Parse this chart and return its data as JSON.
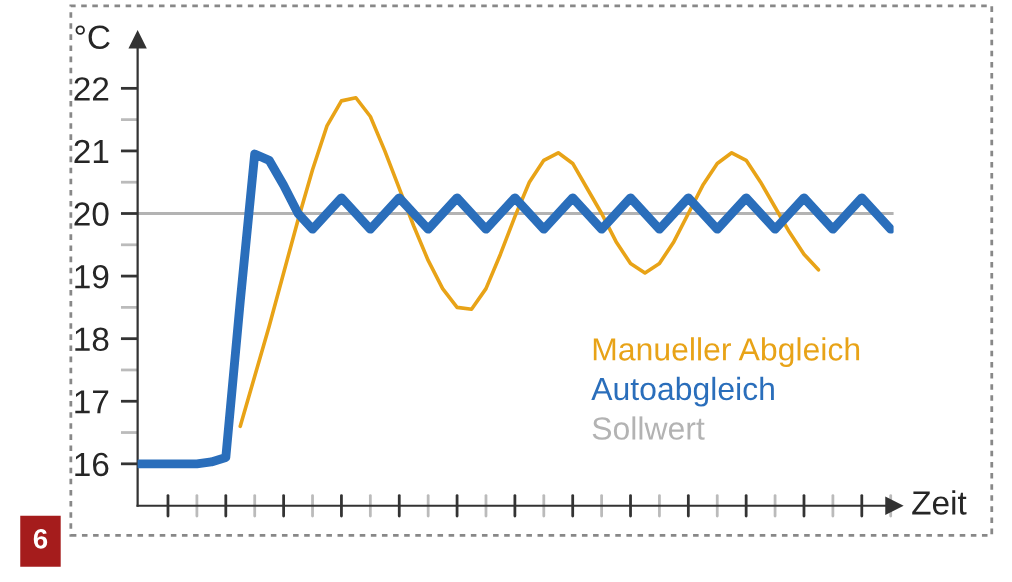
{
  "chart_data": {
    "type": "line",
    "xlabel": "Zeit",
    "ylabel": "°C",
    "categories": [
      null,
      null,
      null,
      null,
      null,
      null,
      null,
      null,
      null,
      null,
      null,
      null,
      null,
      null,
      null,
      null,
      null,
      null,
      null,
      null,
      null,
      null,
      null,
      null,
      null,
      null,
      null,
      null,
      null,
      null,
      null,
      null,
      null,
      null,
      null,
      null,
      null,
      null,
      null,
      null,
      null,
      null,
      null,
      null,
      null,
      null,
      null,
      null,
      null,
      null,
      null,
      null,
      null
    ],
    "ylim": [
      15.33,
      22.77
    ],
    "yticks": [
      16,
      17,
      18,
      19,
      20,
      21,
      22
    ],
    "series": [
      {
        "name": "Manueller Abgleich",
        "color": "#e8a317",
        "values": [
          null,
          null,
          null,
          null,
          null,
          null,
          null,
          16.6,
          17.4,
          18.2,
          19.05,
          19.9,
          20.7,
          21.4,
          21.8,
          21.85,
          21.55,
          21.0,
          20.4,
          19.8,
          19.25,
          18.8,
          18.5,
          18.47,
          18.8,
          19.35,
          19.95,
          20.5,
          20.85,
          20.97,
          20.8,
          20.4,
          20.0,
          19.55,
          19.2,
          19.05,
          19.2,
          19.55,
          20.0,
          20.45,
          20.8,
          20.97,
          20.85,
          20.5,
          20.1,
          19.7,
          19.35,
          19.1,
          null,
          null,
          null,
          null,
          null
        ]
      },
      {
        "name": "Autoabgleich",
        "color": "#2a6ebb",
        "values": [
          16.0,
          16.0,
          16.0,
          16.0,
          16.0,
          16.03,
          16.1,
          18.6,
          20.95,
          20.85,
          20.45,
          20.0,
          19.75,
          20.0,
          20.25,
          20.0,
          19.75,
          20.0,
          20.25,
          20.0,
          19.75,
          20.0,
          20.25,
          20.0,
          19.75,
          20.0,
          20.25,
          20.0,
          19.75,
          20.0,
          20.25,
          20.0,
          19.75,
          20.0,
          20.25,
          20.0,
          19.75,
          20.0,
          20.25,
          20.0,
          19.75,
          20.0,
          20.25,
          20.0,
          19.75,
          20.0,
          20.25,
          20.0,
          19.75,
          20.0,
          20.25,
          20.0,
          19.75
        ]
      }
    ],
    "ref_lines": [
      {
        "axis": "y",
        "value": 20,
        "label": "Sollwert",
        "color": "#b3b3b3"
      }
    ],
    "grid": false,
    "marker": "none",
    "line_style": "solid",
    "annotations": [
      "6"
    ]
  }
}
